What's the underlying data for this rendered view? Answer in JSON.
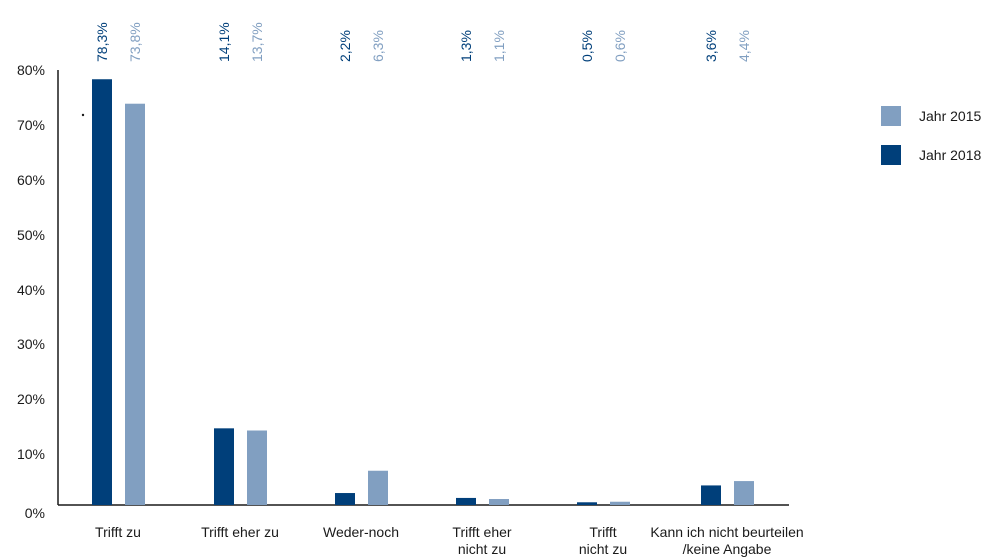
{
  "chart_data": {
    "type": "bar",
    "categories": [
      [
        "Trifft zu"
      ],
      [
        "Trifft eher zu"
      ],
      [
        "Weder-noch"
      ],
      [
        "Trifft eher",
        "nicht zu"
      ],
      [
        "Trifft",
        "nicht zu"
      ],
      [
        "Kann ich nicht beurteilen",
        "/keine Angabe"
      ]
    ],
    "series": [
      {
        "name": "Jahr 2018",
        "color": "#003f7a",
        "values": [
          78.3,
          14.1,
          2.2,
          1.3,
          0.5,
          3.6
        ],
        "labels": [
          "78,3%",
          "14,1%",
          "2,2%",
          "1,3%",
          "0,5%",
          "3,6%"
        ]
      },
      {
        "name": "Jahr 2015",
        "color": "#819fc1",
        "values": [
          73.8,
          13.7,
          6.3,
          1.1,
          0.6,
          4.4
        ],
        "labels": [
          "73,8%",
          "13,7%",
          "6,3%",
          "1,1%",
          "0,6%",
          "4,4%"
        ]
      }
    ],
    "ylim": [
      0,
      80
    ],
    "yticks": [
      "0%",
      "10%",
      "20%",
      "30%",
      "40%",
      "50%",
      "60%",
      "70%",
      "80%"
    ],
    "legend": [
      {
        "name": "Jahr 2015",
        "color": "#819fc1"
      },
      {
        "name": "Jahr 2018",
        "color": "#003f7a"
      }
    ],
    "legend_position": "right",
    "grid": false
  }
}
